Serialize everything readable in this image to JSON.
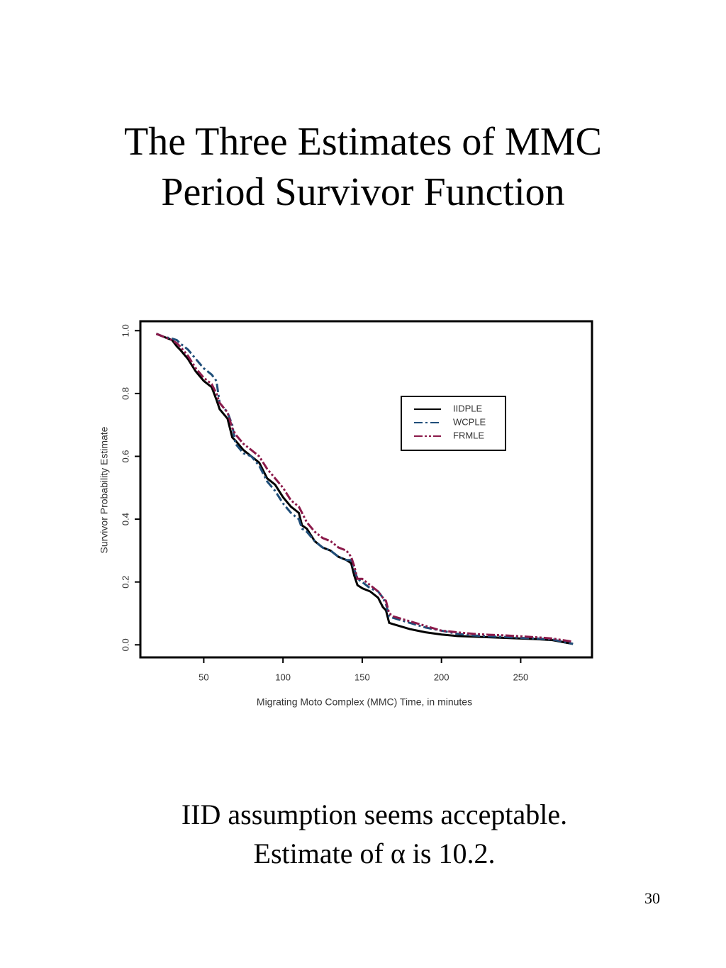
{
  "chart_data": {
    "type": "line",
    "title": [
      "The Three Estimates of MMC",
      "Period Survivor Function"
    ],
    "x_label": "Migrating Moto Complex (MMC) Time, in minutes",
    "y_label": "Survivor Probability Estimate",
    "x": [
      20,
      25,
      30,
      33,
      35,
      40,
      45,
      50,
      55,
      58,
      60,
      65,
      68,
      70,
      75,
      80,
      85,
      90,
      95,
      100,
      105,
      110,
      112,
      115,
      120,
      125,
      130,
      135,
      140,
      143,
      145,
      147,
      150,
      155,
      160,
      163,
      165,
      167,
      170,
      180,
      190,
      200,
      210,
      220,
      230,
      240,
      250,
      260,
      270,
      283
    ],
    "series": [
      {
        "name": "IIDPLE",
        "color": "#000000",
        "dash": "solid",
        "values": [
          0.99,
          0.98,
          0.97,
          0.95,
          0.94,
          0.91,
          0.87,
          0.84,
          0.82,
          0.78,
          0.75,
          0.72,
          0.66,
          0.65,
          0.62,
          0.6,
          0.58,
          0.53,
          0.51,
          0.47,
          0.44,
          0.42,
          0.38,
          0.37,
          0.33,
          0.31,
          0.3,
          0.28,
          0.27,
          0.26,
          0.22,
          0.19,
          0.18,
          0.17,
          0.15,
          0.12,
          0.11,
          0.07,
          0.065,
          0.05,
          0.04,
          0.033,
          0.028,
          0.026,
          0.024,
          0.022,
          0.02,
          0.018,
          0.015,
          0.003
        ]
      },
      {
        "name": "WCPLE",
        "color": "#1f4e79",
        "dash": "dash-dot",
        "values": [
          0.99,
          0.98,
          0.975,
          0.97,
          0.96,
          0.94,
          0.91,
          0.88,
          0.86,
          0.84,
          0.77,
          0.74,
          0.7,
          0.64,
          0.61,
          0.6,
          0.57,
          0.52,
          0.49,
          0.45,
          0.42,
          0.4,
          0.37,
          0.36,
          0.33,
          0.31,
          0.3,
          0.28,
          0.27,
          0.27,
          0.24,
          0.21,
          0.2,
          0.18,
          0.17,
          0.15,
          0.13,
          0.09,
          0.085,
          0.07,
          0.055,
          0.045,
          0.035,
          0.03,
          0.027,
          0.025,
          0.022,
          0.02,
          0.017,
          0.003
        ]
      },
      {
        "name": "FRMLE",
        "color": "#8b1a4a",
        "dash": "dash-dot-dot",
        "values": [
          0.99,
          0.98,
          0.97,
          0.96,
          0.95,
          0.92,
          0.88,
          0.85,
          0.83,
          0.8,
          0.77,
          0.74,
          0.69,
          0.67,
          0.64,
          0.62,
          0.6,
          0.56,
          0.53,
          0.5,
          0.46,
          0.44,
          0.42,
          0.39,
          0.36,
          0.34,
          0.33,
          0.31,
          0.3,
          0.28,
          0.25,
          0.21,
          0.21,
          0.19,
          0.17,
          0.15,
          0.14,
          0.1,
          0.09,
          0.075,
          0.06,
          0.045,
          0.04,
          0.035,
          0.032,
          0.03,
          0.027,
          0.024,
          0.02,
          0.01
        ]
      }
    ],
    "xlim": [
      10,
      295
    ],
    "ylim": [
      -0.04,
      1.03
    ],
    "xticks": [
      50,
      100,
      150,
      200,
      250
    ],
    "yticks": [
      {
        "value": 0,
        "label": "0.0"
      },
      0.2,
      0.4,
      0.6,
      0.8,
      {
        "value": 1,
        "label": "1.0"
      }
    ],
    "legend": "upper right"
  },
  "caption": [
    "IID assumption seems acceptable.",
    "Estimate of α is 10.2."
  ],
  "page_number": "30"
}
